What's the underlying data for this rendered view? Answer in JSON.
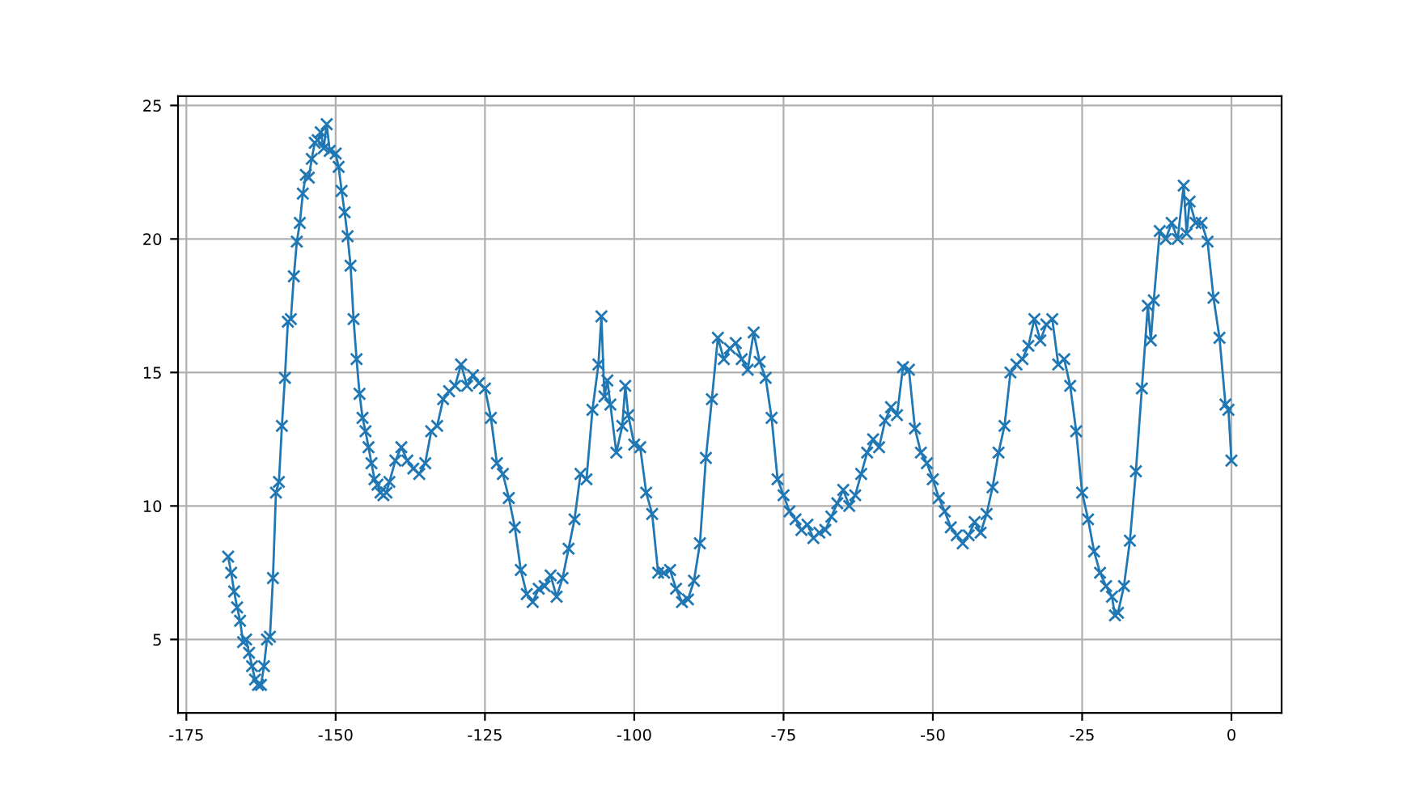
{
  "chart_data": {
    "type": "line",
    "marker": "cross",
    "line_style": "solid",
    "grid": true,
    "xlim": [
      -176.4,
      8.4
    ],
    "ylim": [
      2.25,
      25.35
    ],
    "xticks": [
      -175,
      -150,
      -125,
      -100,
      -75,
      -50,
      -25,
      0
    ],
    "yticks": [
      5,
      10,
      15,
      20,
      25
    ],
    "series": [
      {
        "color": "#1f77b4",
        "x": [
          -168,
          -167.5,
          -167,
          -166.5,
          -166,
          -165.5,
          -165,
          -164.5,
          -164,
          -163.5,
          -163,
          -162.5,
          -162,
          -161.5,
          -161,
          -160.5,
          -160,
          -159.5,
          -159,
          -158.5,
          -158,
          -157.5,
          -157,
          -156.5,
          -156,
          -155.5,
          -155,
          -154.5,
          -154,
          -153.5,
          -153,
          -152.5,
          -152,
          -151.5,
          -151,
          -150,
          -149.5,
          -149,
          -148.5,
          -148,
          -147.5,
          -147,
          -146.5,
          -146,
          -145.5,
          -145,
          -144.5,
          -144,
          -143.5,
          -143,
          -142.5,
          -142,
          -141.5,
          -141,
          -140,
          -139,
          -138,
          -137,
          -136,
          -135,
          -134,
          -133,
          -132,
          -131,
          -130,
          -129,
          -128,
          -127,
          -126,
          -125,
          -124,
          -123,
          -122,
          -121,
          -120,
          -119,
          -118,
          -117,
          -116,
          -115,
          -114,
          -113,
          -112,
          -111,
          -110,
          -109,
          -108,
          -107,
          -106,
          -105.5,
          -105,
          -104.5,
          -104,
          -103,
          -102,
          -101.5,
          -101,
          -100,
          -99,
          -98,
          -97,
          -96,
          -95,
          -94,
          -93,
          -92,
          -91,
          -90,
          -89,
          -88,
          -87,
          -86,
          -85,
          -84,
          -83,
          -82,
          -81,
          -80,
          -79,
          -78,
          -77,
          -76,
          -75,
          -74,
          -73,
          -72,
          -71,
          -70,
          -69,
          -68,
          -67,
          -66,
          -65,
          -64,
          -63,
          -62,
          -61,
          -60,
          -59,
          -58,
          -57,
          -56,
          -55,
          -54,
          -53,
          -52,
          -51,
          -50,
          -49,
          -48,
          -47,
          -46,
          -45,
          -44,
          -43,
          -42,
          -41,
          -40,
          -39,
          -38,
          -37,
          -36,
          -35,
          -34,
          -33,
          -32,
          -31,
          -30,
          -29,
          -28,
          -27,
          -26,
          -25,
          -24,
          -23,
          -22,
          -21,
          -20,
          -19.5,
          -19,
          -18,
          -17,
          -16,
          -15,
          -14,
          -13.5,
          -13,
          -12,
          -11,
          -10,
          -9,
          -8,
          -7.5,
          -7,
          -6,
          -5,
          -4,
          -3,
          -2,
          -1,
          -0.5,
          0
        ],
        "values": [
          8.1,
          7.5,
          6.8,
          6.2,
          5.7,
          4.9,
          5.0,
          4.5,
          4.0,
          3.5,
          3.3,
          3.3,
          4.0,
          5.0,
          5.1,
          7.3,
          10.5,
          10.9,
          13.0,
          14.8,
          16.9,
          17.0,
          18.6,
          19.9,
          20.6,
          21.7,
          22.4,
          22.3,
          23.0,
          23.6,
          23.7,
          24.0,
          23.4,
          24.3,
          23.3,
          23.2,
          22.7,
          21.8,
          21.0,
          20.1,
          19.0,
          17.0,
          15.5,
          14.2,
          13.3,
          12.8,
          12.2,
          11.6,
          11.0,
          10.8,
          10.5,
          10.4,
          10.5,
          10.9,
          11.7,
          12.2,
          11.7,
          11.4,
          11.2,
          11.6,
          12.8,
          13.0,
          14.0,
          14.3,
          14.5,
          15.3,
          14.5,
          14.9,
          14.6,
          14.4,
          13.3,
          11.6,
          11.2,
          10.3,
          9.2,
          7.6,
          6.7,
          6.4,
          6.9,
          7.0,
          7.4,
          6.6,
          7.3,
          8.4,
          9.5,
          11.2,
          11.0,
          13.6,
          15.3,
          17.1,
          14.1,
          14.7,
          13.8,
          12.0,
          13.0,
          14.5,
          13.4,
          12.3,
          12.2,
          10.5,
          9.7,
          7.5,
          7.5,
          7.6,
          6.9,
          6.4,
          6.5,
          7.2,
          8.6,
          11.8,
          14.0,
          16.3,
          15.5,
          15.9,
          16.1,
          15.5,
          15.1,
          16.5,
          15.4,
          14.8,
          13.3,
          11.0,
          10.4,
          9.8,
          9.5,
          9.1,
          9.3,
          8.8,
          9.0,
          9.1,
          9.6,
          10.1,
          10.6,
          10.0,
          10.4,
          11.2,
          12.0,
          12.5,
          12.2,
          13.2,
          13.7,
          13.4,
          15.2,
          15.1,
          12.9,
          12.0,
          11.6,
          11.0,
          10.3,
          9.8,
          9.2,
          8.9,
          8.6,
          8.9,
          9.4,
          9.0,
          9.7,
          10.7,
          12.0,
          13.0,
          15.0,
          15.3,
          15.5,
          16.0,
          17.0,
          16.2,
          16.8,
          17.0,
          15.3,
          15.5,
          14.5,
          12.8,
          10.5,
          9.5,
          8.3,
          7.5,
          7.0,
          6.6,
          5.9,
          6.0,
          7.0,
          8.7,
          11.3,
          14.4,
          17.5,
          16.2,
          17.7,
          20.3,
          20.0,
          20.6,
          20.0,
          22.0,
          20.2,
          21.4,
          20.6,
          20.6,
          19.9,
          17.8,
          16.3,
          13.8,
          13.6,
          11.7
        ]
      }
    ]
  }
}
